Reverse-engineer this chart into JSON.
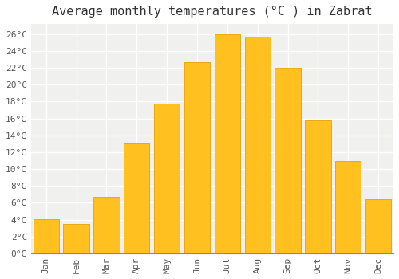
{
  "title": "Average monthly temperatures (°C ) in Zabrat",
  "months": [
    "Jan",
    "Feb",
    "Mar",
    "Apr",
    "May",
    "Jun",
    "Jul",
    "Aug",
    "Sep",
    "Oct",
    "Nov",
    "Dec"
  ],
  "values": [
    4.1,
    3.5,
    6.7,
    13.0,
    17.8,
    22.7,
    26.0,
    25.7,
    22.0,
    15.8,
    11.0,
    6.4
  ],
  "bar_color": "#FFC020",
  "bar_edge_color": "#E8A000",
  "background_color": "#ffffff",
  "plot_bg_color": "#f0f0ee",
  "grid_color": "#ffffff",
  "yticks": [
    0,
    2,
    4,
    6,
    8,
    10,
    12,
    14,
    16,
    18,
    20,
    22,
    24,
    26
  ],
  "ylim": [
    0,
    27.2
  ],
  "title_fontsize": 11,
  "tick_fontsize": 8,
  "font_family": "monospace"
}
